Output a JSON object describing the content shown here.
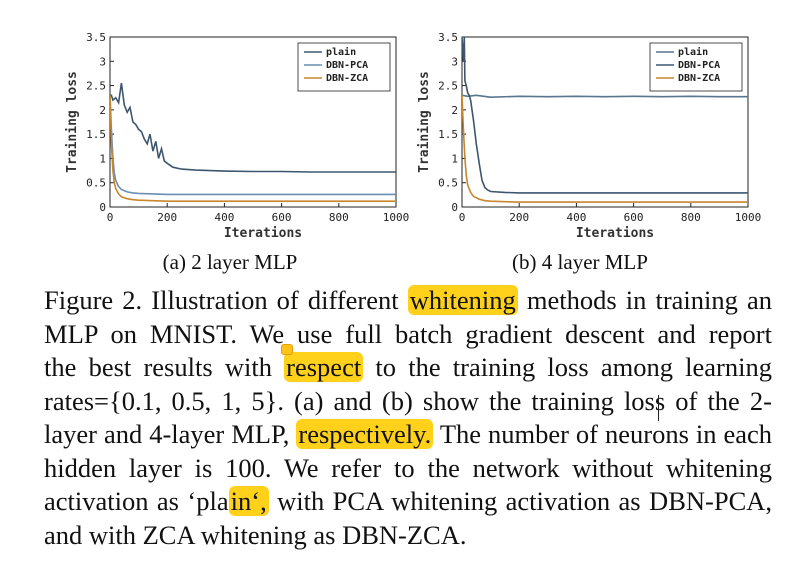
{
  "chart_data": [
    {
      "type": "line",
      "subcaption": "(a)  2 layer MLP",
      "xlabel": "Iterations",
      "ylabel": "Training loss",
      "xlim": [
        0,
        1000
      ],
      "ylim": [
        0,
        3.5
      ],
      "xticks": [
        "0",
        "200",
        "400",
        "600",
        "800",
        "1000"
      ],
      "yticks": [
        "0",
        "0.5",
        "1",
        "1.5",
        "2",
        "2.5",
        "3",
        "3.5"
      ],
      "legend_position": "top-right",
      "series": [
        {
          "name": "plain",
          "color": "#3d5670",
          "x": [
            0,
            5,
            10,
            20,
            30,
            40,
            50,
            60,
            70,
            80,
            90,
            100,
            110,
            120,
            130,
            140,
            150,
            160,
            170,
            180,
            190,
            200,
            220,
            250,
            300,
            400,
            500,
            600,
            700,
            800,
            900,
            1000
          ],
          "y": [
            2.3,
            2.3,
            2.2,
            2.25,
            2.15,
            2.55,
            2.1,
            1.95,
            2.05,
            1.75,
            1.7,
            1.6,
            1.55,
            1.4,
            1.3,
            1.5,
            1.15,
            1.35,
            1.0,
            1.2,
            0.95,
            0.9,
            0.82,
            0.78,
            0.76,
            0.74,
            0.73,
            0.73,
            0.72,
            0.72,
            0.72,
            0.72
          ]
        },
        {
          "name": "DBN-PCA",
          "color": "#6a8fb0",
          "x": [
            0,
            5,
            10,
            15,
            20,
            30,
            40,
            60,
            80,
            100,
            150,
            200,
            300,
            500,
            1000
          ],
          "y": [
            2.3,
            1.6,
            1.0,
            0.7,
            0.55,
            0.42,
            0.36,
            0.31,
            0.29,
            0.28,
            0.27,
            0.26,
            0.26,
            0.26,
            0.26
          ]
        },
        {
          "name": "DBN-ZCA",
          "color": "#c8862e",
          "x": [
            0,
            5,
            10,
            15,
            20,
            30,
            40,
            60,
            80,
            100,
            150,
            200,
            300,
            500,
            1000
          ],
          "y": [
            2.3,
            1.3,
            0.75,
            0.5,
            0.38,
            0.27,
            0.21,
            0.17,
            0.15,
            0.14,
            0.13,
            0.12,
            0.12,
            0.12,
            0.12
          ]
        }
      ]
    },
    {
      "type": "line",
      "subcaption": "(b)  4 layer MLP",
      "xlabel": "Iterations",
      "ylabel": "Training loss",
      "xlim": [
        0,
        1000
      ],
      "ylim": [
        0,
        3.5
      ],
      "xticks": [
        "0",
        "200",
        "400",
        "600",
        "800",
        "1000"
      ],
      "yticks": [
        "0",
        "0.5",
        "1",
        "1.5",
        "2",
        "2.5",
        "3",
        "3.5"
      ],
      "legend_position": "top-right",
      "series": [
        {
          "name": "plain",
          "color": "#5a7590",
          "x": [
            0,
            10,
            20,
            50,
            100,
            200,
            300,
            400,
            500,
            600,
            700,
            800,
            900,
            1000
          ],
          "y": [
            2.3,
            2.29,
            2.28,
            2.3,
            2.26,
            2.28,
            2.27,
            2.28,
            2.27,
            2.28,
            2.27,
            2.28,
            2.27,
            2.27
          ]
        },
        {
          "name": "DBN-PCA",
          "color": "#3d5670",
          "x": [
            0,
            5,
            8,
            10,
            15,
            20,
            25,
            30,
            40,
            50,
            60,
            70,
            80,
            90,
            100,
            150,
            200,
            300,
            500,
            1000
          ],
          "y": [
            3.5,
            3.0,
            3.5,
            2.6,
            2.5,
            2.35,
            2.3,
            2.2,
            1.8,
            1.3,
            0.9,
            0.55,
            0.4,
            0.35,
            0.32,
            0.3,
            0.29,
            0.29,
            0.29,
            0.29
          ]
        },
        {
          "name": "DBN-ZCA",
          "color": "#c8862e",
          "x": [
            0,
            5,
            10,
            15,
            20,
            30,
            40,
            60,
            80,
            100,
            150,
            200,
            300,
            500,
            1000
          ],
          "y": [
            2.3,
            1.6,
            1.0,
            0.65,
            0.45,
            0.3,
            0.22,
            0.16,
            0.13,
            0.12,
            0.11,
            0.1,
            0.1,
            0.1,
            0.1
          ]
        }
      ]
    }
  ],
  "caption_lines": [
    [
      "Figure 2. Illustration of different ",
      {
        "hl": "whitening"
      },
      " methods in training an"
    ],
    [
      "MLP on MNIST. We use full batch gradient descent and report"
    ],
    [
      "the best results with ",
      {
        "hl": "respect"
      },
      " to the training loss among learning"
    ],
    [
      "rates={0.1, 0.5, 1, 5}.  (a) and (b) show the training loss of the 2-"
    ],
    [
      "layer and 4-layer MLP, ",
      {
        "hl": "respectively."
      },
      " The number of neurons in each"
    ],
    [
      "hidden layer is 100.  We refer to the network without whitening"
    ],
    [
      "activation as ‘pla",
      {
        "hl": "in‘,"
      },
      " with PCA whitening activation as DBN-PCA,"
    ],
    [
      "and with ZCA whitening as DBN-ZCA."
    ]
  ]
}
